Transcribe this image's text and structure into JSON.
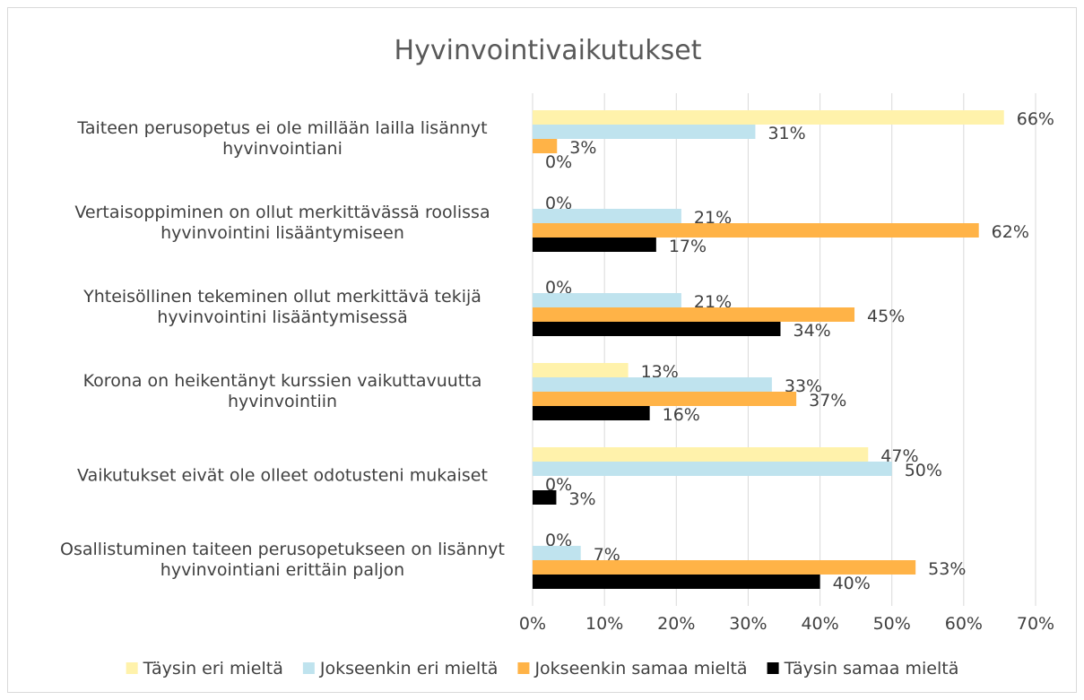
{
  "chart_data": {
    "type": "hbar",
    "title": "Hyvinvointivaikutukset",
    "categories": [
      "Taiteen perusopetus ei ole millään lailla lisännyt hyvinvointiani",
      "Vertaisoppiminen on ollut merkittävässä roolissa hyvinvointini lisääntymiseen",
      "Yhteisöllinen tekeminen ollut merkittävä tekijä hyvinvointini lisääntymisessä",
      "Korona on heikentänyt kurssien vaikuttavuutta hyvinvointiin",
      "Vaikutukset eivät ole olleet odotusteni mukaiset",
      "Osallistuminen taiteen perusopetukseen on lisännyt hyvinvointiani erittäin paljon"
    ],
    "series": [
      {
        "name": "Täysin eri mieltä",
        "color": "#fff2ab",
        "values": [
          65.6,
          0,
          0,
          13.3,
          46.7,
          0
        ],
        "value_labels": [
          "66%",
          "0%",
          "0%",
          "13%",
          "47%",
          "0%"
        ]
      },
      {
        "name": "Jokseenkin eri mieltä",
        "color": "#bfe3ee",
        "values": [
          31,
          20.7,
          20.7,
          33.3,
          50,
          6.7
        ],
        "value_labels": [
          "31%",
          "21%",
          "21%",
          "33%",
          "50%",
          "7%"
        ]
      },
      {
        "name": "Jokseenkin samaa mieltä",
        "color": "#ffb347",
        "values": [
          3.4,
          62.1,
          44.8,
          36.7,
          0,
          53.3
        ],
        "value_labels": [
          "3%",
          "62%",
          "45%",
          "37%",
          "0%",
          "53%"
        ]
      },
      {
        "name": "Täysin samaa mieltä",
        "color": "#000000",
        "values": [
          0,
          17.2,
          34.5,
          16.3,
          3.3,
          40
        ],
        "value_labels": [
          "0%",
          "17%",
          "34%",
          "16%",
          "3%",
          "40%"
        ]
      }
    ],
    "xlim": [
      0,
      70
    ],
    "xticks": [
      {
        "value": 0,
        "label": "0%"
      },
      {
        "value": 10,
        "label": "10%"
      },
      {
        "value": 20,
        "label": "20%"
      },
      {
        "value": 30,
        "label": "30%"
      },
      {
        "value": 40,
        "label": "40%"
      },
      {
        "value": 50,
        "label": "50%"
      },
      {
        "value": 60,
        "label": "60%"
      },
      {
        "value": 70,
        "label": "70%"
      }
    ],
    "grid": true,
    "legend": "bottom"
  }
}
